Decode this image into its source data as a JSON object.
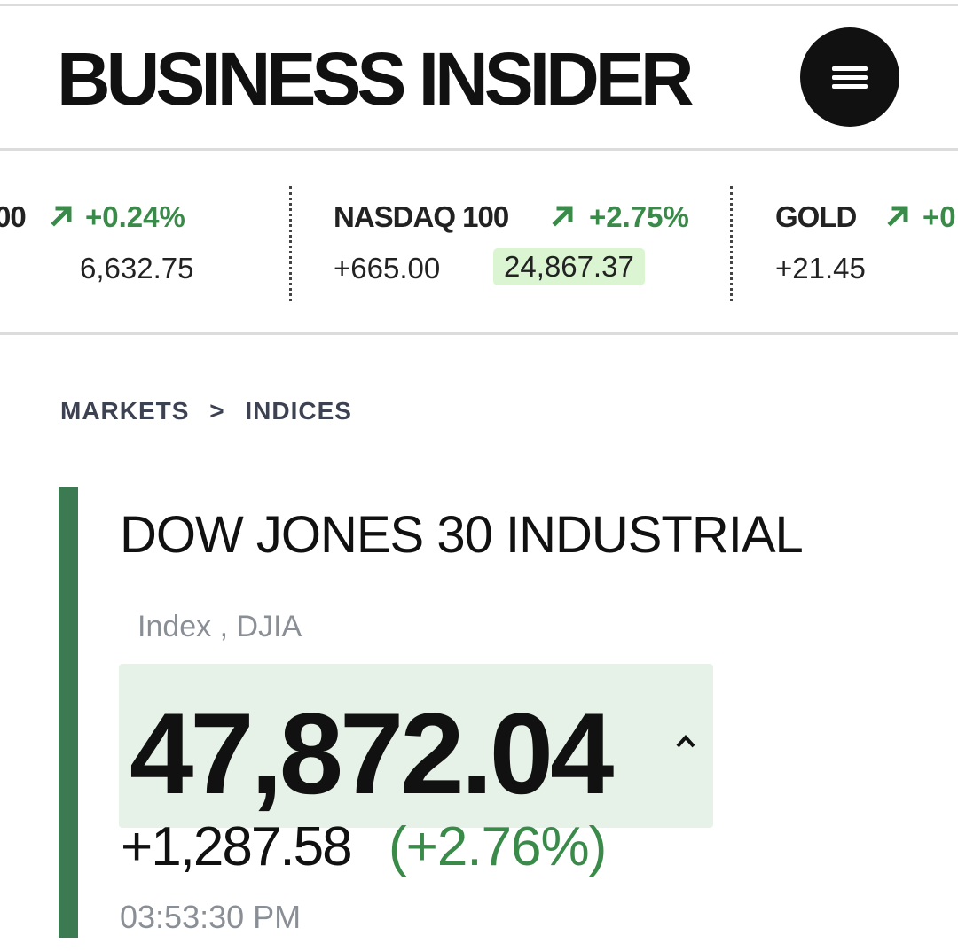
{
  "header": {
    "logo_text": "BUSINESS INSIDER",
    "menu_icon": "hamburger-menu-icon"
  },
  "ticker": [
    {
      "name": "",
      "name_partial": "00",
      "change_pct": "+0.24%",
      "change": "",
      "value": "6,632.75",
      "direction": "up"
    },
    {
      "name": "NASDAQ 100",
      "change_pct": "+2.75%",
      "change": "+665.00",
      "value": "24,867.37",
      "direction": "up",
      "value_highlighted": true
    },
    {
      "name": "GOLD",
      "change_pct": "+0",
      "change": "+21.45",
      "value": "",
      "direction": "up"
    }
  ],
  "breadcrumb": {
    "items": [
      "MARKETS",
      "INDICES"
    ],
    "separator": ">"
  },
  "quote": {
    "title": "DOW JONES 30 INDUSTRIAL",
    "subtitle": "Index , DJIA",
    "price": "47,872.04",
    "change": "+1,287.58",
    "change_pct": "(+2.76%)",
    "time": "03:53:30 PM"
  },
  "colors": {
    "up_green": "#3a8a4a",
    "accent_bar": "#3c7a52",
    "price_bg": "#e6f2e8",
    "highlight_bg": "#dbf5d2"
  }
}
